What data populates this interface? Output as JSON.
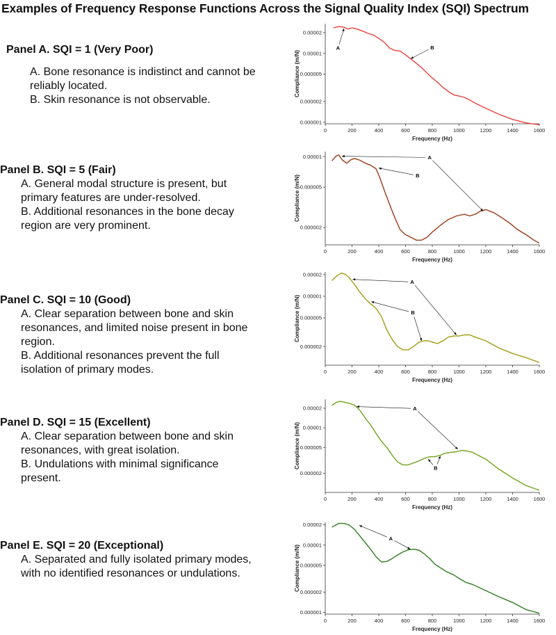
{
  "title": "Examples of Frequency Response Functions Across the Signal Quality Index (SQI) Spectrum",
  "panels": [
    {
      "heading": "Panel A. SQI = 1 (Very Poor)",
      "notes": [
        [
          "A. Bone resonance is indistinct and cannot be",
          "reliably located."
        ],
        [
          "B. Skin resonance is not observable."
        ]
      ]
    },
    {
      "heading": "Panel B. SQI = 5 (Fair)",
      "notes": [
        [
          "A. General modal structure is present, but",
          "primary features are under-resolved."
        ],
        [
          "B. Additional resonances in the bone decay",
          "region are very prominent."
        ]
      ]
    },
    {
      "heading": "Panel C. SQI = 10 (Good)",
      "notes": [
        [
          "A. Clear separation between bone and skin",
          "resonances, and limited noise present in bone",
          "region."
        ],
        [
          "B. Additional resonances prevent the full",
          "isolation of primary modes."
        ]
      ]
    },
    {
      "heading": "Panel D. SQI = 15 (Excellent)",
      "notes": [
        [
          "A. Clear separation between bone and skin",
          "resonances, with great isolation."
        ],
        [
          "B. Undulations with minimal significance",
          "present."
        ]
      ]
    },
    {
      "heading": "Panel E. SQI = 20 (Exceptional)",
      "notes": [
        [
          "A. Separated and fully isolated primary modes,",
          "with no identified resonances or undulations."
        ]
      ]
    }
  ],
  "chart_data": [
    {
      "type": "line",
      "color": "#e8413b",
      "xlabel": "Frequency (Hz)",
      "ylabel": "Compliance (m/N)",
      "xlim": [
        0,
        1600
      ],
      "xticks": [
        0,
        200,
        400,
        600,
        800,
        1000,
        1200,
        1400,
        1600
      ],
      "ylim": [
        9.5e-07,
        2.7e-05
      ],
      "yscale": "log",
      "yticks": [
        1e-06,
        2e-06,
        5e-06,
        1e-05,
        2e-05
      ],
      "ytick_labels": [
        "0.000001",
        "0.000002",
        "0.000005",
        "0.00001",
        "0.00002"
      ],
      "x": [
        60,
        100,
        140,
        170,
        200,
        240,
        280,
        320,
        360,
        400,
        440,
        480,
        520,
        560,
        600,
        640,
        680,
        720,
        760,
        800,
        840,
        880,
        920,
        960,
        1000,
        1040,
        1080,
        1120,
        1200,
        1300,
        1400,
        1500,
        1600
      ],
      "y": [
        2.35e-05,
        2.45e-05,
        2.4e-05,
        2.25e-05,
        2.35e-05,
        2.25e-05,
        2.1e-05,
        1.95e-05,
        1.85e-05,
        1.65e-05,
        1.45e-05,
        1.2e-05,
        1.1e-05,
        1.08e-05,
        9.5e-06,
        8.3e-06,
        7.2e-06,
        6.2e-06,
        5.2e-06,
        4.4e-06,
        3.8e-06,
        3.2e-06,
        2.8e-06,
        2.5e-06,
        2.4e-06,
        2.3e-06,
        2.1e-06,
        1.9e-06,
        1.6e-06,
        1.3e-06,
        1.1e-06,
        9.8e-07,
        9.2e-07
      ],
      "annotations": [
        {
          "text": "A",
          "tip": [
            140,
            2.29e-05
          ],
          "label_at": [
            95,
            1.19e-05
          ]
        },
        {
          "text": "B",
          "tip": [
            640,
            8.4e-06
          ],
          "label_at": [
            800,
            1.21e-05
          ]
        }
      ]
    },
    {
      "type": "line",
      "color": "#9c3a16",
      "xlabel": "Frequency (Hz)",
      "ylabel": "Compliance (m/N)",
      "xlim": [
        0,
        1600
      ],
      "xticks": [
        0,
        200,
        400,
        600,
        800,
        1000,
        1200,
        1400,
        1600
      ],
      "ylim": [
        1.35e-06,
        1.12e-05
      ],
      "yscale": "log",
      "yticks": [
        2e-06,
        5e-06,
        1e-05
      ],
      "ytick_labels": [
        "0.000002",
        "0.000005",
        "0.00001"
      ],
      "x": [
        50,
        80,
        100,
        130,
        160,
        190,
        220,
        260,
        300,
        340,
        380,
        410,
        440,
        480,
        520,
        560,
        600,
        640,
        680,
        720,
        760,
        800,
        860,
        920,
        980,
        1040,
        1080,
        1120,
        1160,
        1200,
        1260,
        1320,
        1380,
        1440,
        1500,
        1560,
        1600
      ],
      "y": [
        9.1e-06,
        1.01e-05,
        1.04e-05,
        9.2e-06,
        8.6e-06,
        9.3e-06,
        9.6e-06,
        9.2e-06,
        8.6e-06,
        8.2e-06,
        7.6e-06,
        6.1e-06,
        4.7e-06,
        3.4e-06,
        2.5e-06,
        1.9e-06,
        1.7e-06,
        1.6e-06,
        1.5e-06,
        1.5e-06,
        1.6e-06,
        1.8e-06,
        2.1e-06,
        2.4e-06,
        2.6e-06,
        2.7e-06,
        2.6e-06,
        2.7e-06,
        2.9e-06,
        3e-06,
        2.8e-06,
        2.5e-06,
        2.2e-06,
        1.9e-06,
        1.7e-06,
        1.5e-06,
        1.4e-06
      ],
      "annotations": [
        {
          "text": "A",
          "tip": [
            125,
            1.01e-05
          ],
          "label_at": [
            780,
            9.8e-06
          ],
          "tips": [
            [
              125,
              1.01e-05
            ],
            [
              1180,
              2.9e-06
            ]
          ]
        },
        {
          "text": "B",
          "tip": [
            400,
            7.7e-06
          ],
          "label_at": [
            690,
            6.5e-06
          ]
        }
      ]
    },
    {
      "type": "line",
      "color": "#a39a12",
      "xlabel": "Frequency (Hz)",
      "ylabel": "Compliance (m/N)",
      "xlim": [
        0,
        1600
      ],
      "xticks": [
        0,
        200,
        400,
        600,
        800,
        1000,
        1200,
        1400,
        1600
      ],
      "ylim": [
        1.1e-06,
        2.18e-05
      ],
      "yscale": "log",
      "yticks": [
        2e-06,
        5e-06,
        1e-05,
        2e-05
      ],
      "ytick_labels": [
        "0.000002",
        "0.000005",
        "0.00001",
        "0.00002"
      ],
      "x": [
        50,
        90,
        120,
        150,
        180,
        220,
        260,
        300,
        340,
        380,
        420,
        460,
        500,
        540,
        580,
        620,
        660,
        700,
        740,
        770,
        800,
        840,
        880,
        920,
        960,
        1000,
        1040,
        1080,
        1120,
        1200,
        1300,
        1400,
        1500,
        1600
      ],
      "y": [
        1.65e-05,
        1.95e-05,
        2.1e-05,
        2.02e-05,
        1.8e-05,
        1.45e-05,
        1.13e-05,
        9.2e-06,
        7.8e-06,
        6.8e-06,
        5.2e-06,
        3.4e-06,
        2.5e-06,
        2e-06,
        1.8e-06,
        1.8e-06,
        2e-06,
        2.3e-06,
        2.4e-06,
        2.4e-06,
        2.3e-06,
        2.2e-06,
        2.4e-06,
        2.7e-06,
        2.8e-06,
        2.8e-06,
        2.9e-06,
        2.9e-06,
        2.7e-06,
        2.4e-06,
        1.9e-06,
        1.6e-06,
        1.4e-06,
        1.2e-06
      ],
      "annotations": [
        {
          "text": "A",
          "tip": [
            205,
            1.72e-05
          ],
          "label_at": [
            650,
            1.58e-05
          ],
          "tips": [
            [
              205,
              1.72e-05
            ],
            [
              980,
              2.9e-06
            ]
          ]
        },
        {
          "text": "B",
          "tip": [
            345,
            8.4e-06
          ],
          "label_at": [
            655,
            5.9e-06
          ],
          "tips": [
            [
              345,
              8.4e-06
            ],
            [
              720,
              2.4e-06
            ]
          ]
        }
      ]
    },
    {
      "type": "line",
      "color": "#6fa218",
      "xlabel": "Frequency (Hz)",
      "ylabel": "Compliance (m/N)",
      "xlim": [
        0,
        1600
      ],
      "xticks": [
        0,
        200,
        400,
        600,
        800,
        1000,
        1200,
        1400,
        1600
      ],
      "ylim": [
        1.02e-06,
        2.75e-05
      ],
      "yscale": "log",
      "yticks": [
        2e-06,
        5e-06,
        1e-05,
        2e-05
      ],
      "ytick_labels": [
        "0.000002",
        "0.000005",
        "0.00001",
        "0.00002"
      ],
      "x": [
        50,
        80,
        110,
        140,
        180,
        220,
        260,
        300,
        340,
        380,
        420,
        460,
        500,
        540,
        580,
        620,
        660,
        700,
        740,
        780,
        820,
        860,
        900,
        940,
        980,
        1020,
        1060,
        1100,
        1200,
        1300,
        1400,
        1500,
        1600
      ],
      "y": [
        2.2e-05,
        2.45e-05,
        2.55e-05,
        2.48e-05,
        2.38e-05,
        2.22e-05,
        1.85e-05,
        1.4e-05,
        1.1e-05,
        8.2e-06,
        6.2e-06,
        5e-06,
        3.8e-06,
        3e-06,
        2.7e-06,
        2.7e-06,
        2.9e-06,
        3.1e-06,
        3.4e-06,
        3.6e-06,
        3.6e-06,
        3.8e-06,
        4.1e-06,
        4.2e-06,
        4.3e-06,
        4.5e-06,
        4.4e-06,
        4.2e-06,
        3.3e-06,
        2.3e-06,
        1.7e-06,
        1.3e-06,
        1.1e-06
      ],
      "annotations": [
        {
          "text": "A",
          "tip": [
            235,
            2.12e-05
          ],
          "label_at": [
            670,
            1.98e-05
          ],
          "tips": [
            [
              235,
              2.12e-05
            ],
            [
              990,
              4.7e-06
            ]
          ]
        },
        {
          "text": "B",
          "tip": [
            770,
            3.3e-06
          ],
          "label_at": [
            825,
            2.4e-06
          ],
          "tips": [
            [
              770,
              3.3e-06
            ],
            [
              860,
              3.7e-06
            ]
          ]
        }
      ]
    },
    {
      "type": "line",
      "color": "#2e7d1e",
      "xlabel": "Frequency (Hz)",
      "ylabel": "Compliance (m/N)",
      "xlim": [
        0,
        1600
      ],
      "xticks": [
        0,
        200,
        400,
        600,
        800,
        1000,
        1200,
        1400,
        1600
      ],
      "ylim": [
        9.4e-07,
        2.18e-05
      ],
      "yscale": "log",
      "yticks": [
        1e-06,
        2e-06,
        5e-06,
        1e-05,
        2e-05
      ],
      "ytick_labels": [
        "0.000001",
        "0.000002",
        "0.000005",
        "0.00001",
        "0.00002"
      ],
      "x": [
        50,
        100,
        140,
        180,
        220,
        260,
        300,
        340,
        380,
        420,
        460,
        500,
        540,
        580,
        620,
        660,
        700,
        740,
        780,
        820,
        860,
        900,
        960,
        1000,
        1050,
        1100,
        1200,
        1300,
        1400,
        1500,
        1600
      ],
      "y": [
        1.85e-05,
        2.1e-05,
        2.1e-05,
        1.98e-05,
        1.7e-05,
        1.35e-05,
        1.08e-05,
        8.6e-06,
        6.7e-06,
        5.6e-06,
        5.7e-06,
        6.3e-06,
        7.1e-06,
        7.9e-06,
        8.5e-06,
        8.7e-06,
        8.4e-06,
        7.4e-06,
        6.3e-06,
        5.2e-06,
        4.6e-06,
        4.1e-06,
        3.6e-06,
        3.2e-06,
        2.8e-06,
        2.6e-06,
        2.1e-06,
        1.7e-06,
        1.4e-06,
        1.1e-06,
        9.7e-07
      ],
      "annotations": [
        {
          "text": "A",
          "tip": [
            255,
            1.96e-05
          ],
          "label_at": [
            490,
            1.25e-05
          ],
          "tips": [
            [
              255,
              1.96e-05
            ],
            [
              635,
              8.7e-06
            ]
          ]
        }
      ]
    }
  ]
}
